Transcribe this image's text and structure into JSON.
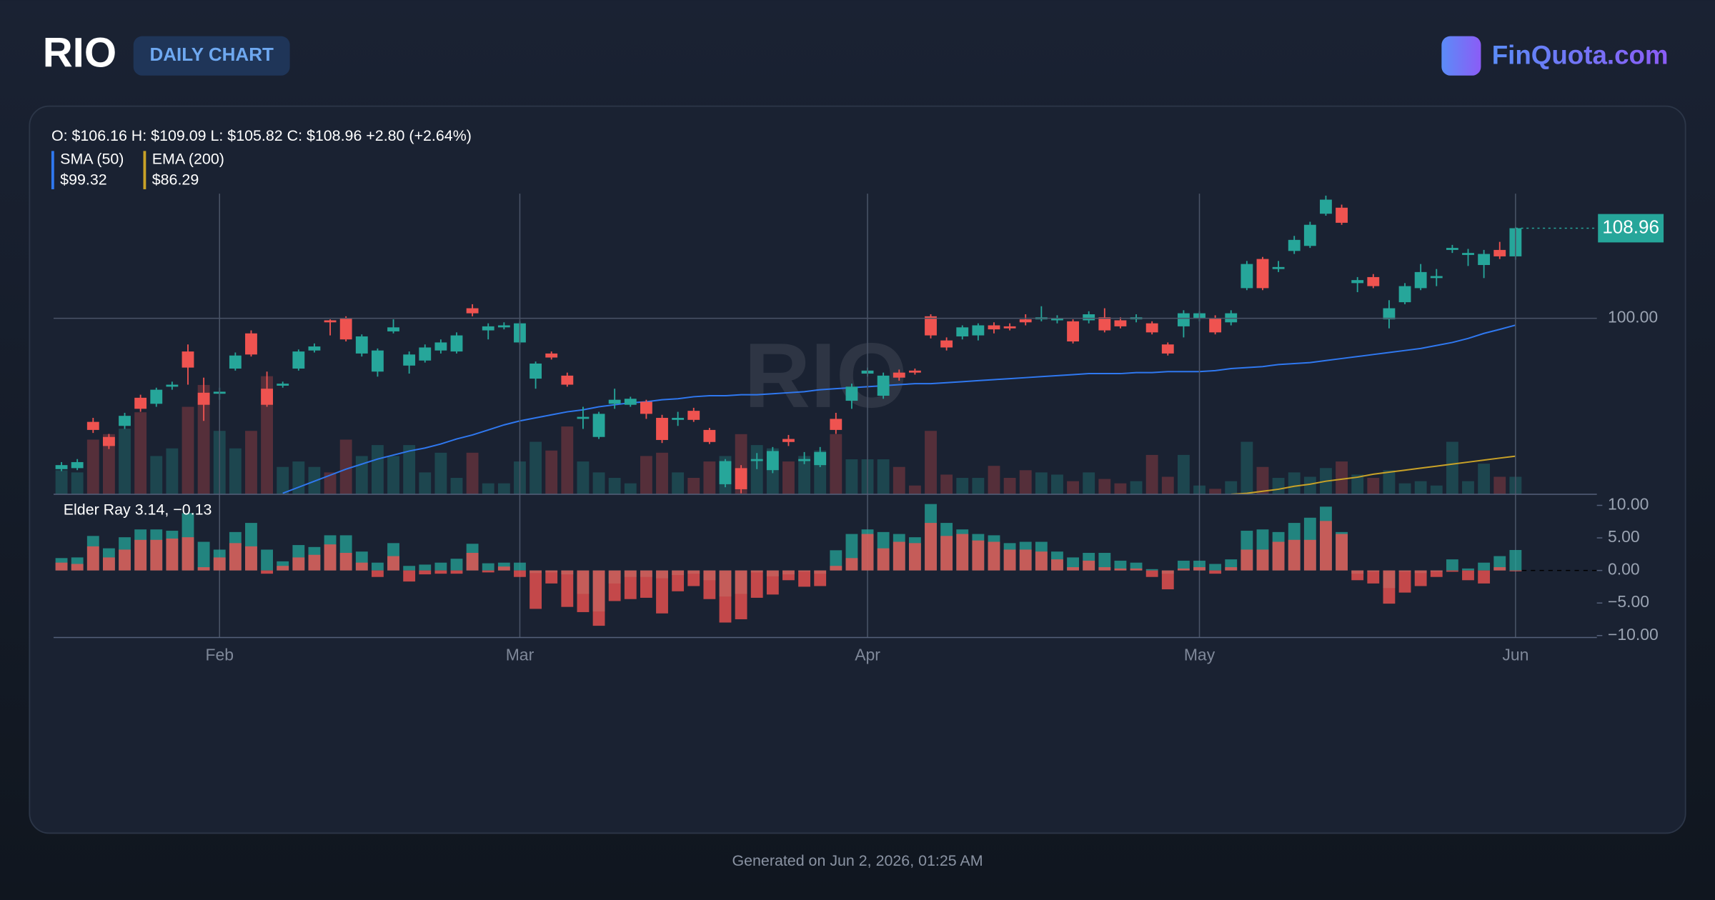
{
  "header": {
    "ticker": "RIO",
    "badge": "DAILY CHART",
    "brand": "FinQuota.com"
  },
  "chart_data": {
    "type": "candlestick",
    "categories": [
      null,
      null,
      null,
      null,
      null,
      null,
      null,
      null,
      null,
      null,
      "Feb",
      null,
      null,
      null,
      null,
      null,
      null,
      null,
      null,
      null,
      null,
      null,
      null,
      null,
      null,
      null,
      null,
      null,
      null,
      "Mar",
      null,
      null,
      null,
      null,
      null,
      null,
      null,
      null,
      null,
      null,
      null,
      null,
      null,
      null,
      null,
      null,
      null,
      null,
      null,
      null,
      null,
      "Apr",
      null,
      null,
      null,
      null,
      null,
      null,
      null,
      null,
      null,
      null,
      null,
      null,
      null,
      null,
      null,
      null,
      null,
      null,
      null,
      null,
      "May",
      null,
      null,
      null,
      null,
      null,
      null,
      null,
      null,
      null,
      null,
      null,
      null,
      null,
      null,
      null,
      null,
      null,
      null,
      null,
      "Jun"
    ],
    "open": [
      85.0,
      85.1,
      89.7,
      88.2,
      89.3,
      92.1,
      91.5,
      93.2,
      96.7,
      92.6,
      92.5,
      95.0,
      98.5,
      93.0,
      93.3,
      95.0,
      96.8,
      99.8,
      100.0,
      96.5,
      94.7,
      98.7,
      95.3,
      95.8,
      96.8,
      96.7,
      101.0,
      98.8,
      99.1,
      97.6,
      94.0,
      96.5,
      94.3,
      90.0,
      88.2,
      91.5,
      91.4,
      91.7,
      90.1,
      89.9,
      90.8,
      88.9,
      83.5,
      85.1,
      85.8,
      84.9,
      88.0,
      85.8,
      85.4,
      90.0,
      91.8,
      94.5,
      92.3,
      94.6,
      94.8,
      100.2,
      97.8,
      98.2,
      98.3,
      99.3,
      99.2,
      99.9,
      99.9,
      99.8,
      99.7,
      99.8,
      100.1,
      99.8,
      99.9,
      99.5,
      97.4,
      99.2,
      100.0,
      100.0,
      99.6,
      103.0,
      105.9,
      104.9,
      106.7,
      107.2,
      110.4,
      111.0,
      103.5,
      104.1,
      99.9,
      101.6,
      103.0,
      104.0,
      106.8,
      106.3,
      105.3,
      106.8,
      106.16
    ],
    "high": [
      85.7,
      86.0,
      90.1,
      88.5,
      90.6,
      92.4,
      93.1,
      93.7,
      97.4,
      94.1,
      93.1,
      96.6,
      98.8,
      94.7,
      93.7,
      96.9,
      97.5,
      99.9,
      100.2,
      98.4,
      97.0,
      99.9,
      96.7,
      97.4,
      97.9,
      98.6,
      101.4,
      99.5,
      99.6,
      99.7,
      95.7,
      96.7,
      94.6,
      91.2,
      90.7,
      93.0,
      92.2,
      91.9,
      90.4,
      90.7,
      91.1,
      89.1,
      86.0,
      85.4,
      86.6,
      87.2,
      88.4,
      86.7,
      87.2,
      90.6,
      93.5,
      95.1,
      94.6,
      94.9,
      95.0,
      100.4,
      98.1,
      99.3,
      99.5,
      99.6,
      99.5,
      100.4,
      101.2,
      100.3,
      99.9,
      100.7,
      101.0,
      100.1,
      100.4,
      99.7,
      97.6,
      100.8,
      100.7,
      100.3,
      100.8,
      105.7,
      106.1,
      105.7,
      108.2,
      109.6,
      112.2,
      111.3,
      104.1,
      104.4,
      101.8,
      103.5,
      105.4,
      104.9,
      107.3,
      106.9,
      106.8,
      107.6,
      109.09
    ],
    "low": [
      84.8,
      84.9,
      88.6,
      87.0,
      89.0,
      90.7,
      91.2,
      92.9,
      93.4,
      89.8,
      91.9,
      94.8,
      96.2,
      91.2,
      93.1,
      94.8,
      96.6,
      98.3,
      97.7,
      96.2,
      94.2,
      98.5,
      94.5,
      95.6,
      96.5,
      96.5,
      100.2,
      97.9,
      98.9,
      97.4,
      93.0,
      95.9,
      93.2,
      89.0,
      88.0,
      91.0,
      91.2,
      90.0,
      87.6,
      89.3,
      89.7,
      87.5,
      83.2,
      82.6,
      85.0,
      84.6,
      87.3,
      85.5,
      85.2,
      88.5,
      91.0,
      94.2,
      92.0,
      93.8,
      94.4,
      98.0,
      96.8,
      97.9,
      97.8,
      98.5,
      98.8,
      99.3,
      99.7,
      99.5,
      97.5,
      99.5,
      98.6,
      99.0,
      99.6,
      98.4,
      96.3,
      98.1,
      99.7,
      98.4,
      99.3,
      102.8,
      102.8,
      104.6,
      106.4,
      107.0,
      110.2,
      109.3,
      102.6,
      103.0,
      99.0,
      101.4,
      102.8,
      103.2,
      106.5,
      105.2,
      104.0,
      105.9,
      105.82
    ],
    "close": [
      85.4,
      85.7,
      88.9,
      87.3,
      90.3,
      91.0,
      92.9,
      93.4,
      95.1,
      91.4,
      92.7,
      96.3,
      96.4,
      91.4,
      93.5,
      96.7,
      97.2,
      99.6,
      97.9,
      98.2,
      96.8,
      99.1,
      96.4,
      97.1,
      97.6,
      98.3,
      100.5,
      99.2,
      99.3,
      99.5,
      95.5,
      96.1,
      93.4,
      90.2,
      90.5,
      91.9,
      92.0,
      90.5,
      87.9,
      90.1,
      89.9,
      87.7,
      85.8,
      83.0,
      86.0,
      86.8,
      87.7,
      86.0,
      86.7,
      88.9,
      93.2,
      94.8,
      94.3,
      94.1,
      94.6,
      98.3,
      97.1,
      99.1,
      99.3,
      98.9,
      99.0,
      99.6,
      100.1,
      100.0,
      97.7,
      100.4,
      98.8,
      99.2,
      100.1,
      98.6,
      96.5,
      100.5,
      100.5,
      98.6,
      100.5,
      105.4,
      103.0,
      105.1,
      107.8,
      109.3,
      111.8,
      109.5,
      103.8,
      103.2,
      101.0,
      103.2,
      104.6,
      104.2,
      107.0,
      106.5,
      106.4,
      106.16,
      108.96
    ],
    "up_color": "#26a69a",
    "down_color": "#ef5350",
    "ohlc_label": "O: $106.16 H: $109.09 L: $105.82 C: $108.96 +2.80 (+2.64%)",
    "last_price_label": "108.96",
    "watermark": "RIO",
    "ylim": [
      82.5,
      112.4
    ],
    "yticks": [
      {
        "value": 100,
        "label": "100.00"
      }
    ],
    "grid": true,
    "series": [
      {
        "name": "SMA (50)",
        "color": "#2f78f0",
        "last_label": "$99.32",
        "values": [
          null,
          null,
          null,
          null,
          null,
          null,
          null,
          null,
          null,
          null,
          null,
          null,
          null,
          null,
          82.6,
          83.2,
          83.8,
          84.4,
          85.0,
          85.5,
          86.0,
          86.4,
          86.8,
          87.1,
          87.5,
          88.0,
          88.4,
          88.9,
          89.4,
          89.8,
          90.1,
          90.4,
          90.7,
          90.9,
          91.2,
          91.4,
          91.6,
          91.7,
          91.9,
          92.0,
          92.2,
          92.3,
          92.3,
          92.4,
          92.4,
          92.5,
          92.6,
          92.7,
          92.9,
          93.0,
          93.1,
          93.2,
          93.3,
          93.4,
          93.5,
          93.5,
          93.6,
          93.7,
          93.8,
          93.9,
          94.0,
          94.1,
          94.2,
          94.3,
          94.4,
          94.5,
          94.5,
          94.5,
          94.6,
          94.6,
          94.7,
          94.7,
          94.7,
          94.8,
          95.0,
          95.1,
          95.2,
          95.4,
          95.5,
          95.6,
          95.8,
          96.0,
          96.2,
          96.4,
          96.6,
          96.8,
          97.0,
          97.3,
          97.6,
          98.0,
          98.5,
          98.9,
          99.32
        ]
      },
      {
        "name": "EMA (200)",
        "color": "#c9a227",
        "last_label": "$86.29",
        "values": [
          null,
          null,
          null,
          null,
          null,
          null,
          null,
          null,
          null,
          null,
          null,
          null,
          null,
          null,
          null,
          null,
          null,
          null,
          null,
          null,
          null,
          null,
          null,
          null,
          null,
          null,
          null,
          null,
          null,
          null,
          null,
          null,
          null,
          null,
          null,
          null,
          null,
          null,
          null,
          null,
          null,
          null,
          null,
          null,
          null,
          null,
          null,
          null,
          null,
          null,
          null,
          null,
          null,
          null,
          null,
          null,
          null,
          null,
          null,
          null,
          null,
          null,
          null,
          null,
          null,
          null,
          null,
          null,
          null,
          null,
          null,
          null,
          null,
          null,
          82.5,
          82.6,
          82.8,
          83.0,
          83.3,
          83.5,
          83.8,
          84.0,
          84.2,
          84.5,
          84.7,
          84.9,
          85.1,
          85.3,
          85.5,
          85.7,
          85.9,
          86.1,
          86.29
        ]
      }
    ],
    "volume": {
      "ylim": [
        0,
        27.5
      ],
      "values": [
        2.2,
        2.0,
        5.0,
        5.5,
        6.0,
        7.5,
        3.5,
        4.2,
        8.0,
        10.0,
        5.8,
        4.2,
        5.8,
        10.8,
        2.5,
        3.0,
        2.5,
        2.0,
        5.0,
        3.5,
        4.5,
        3.5,
        4.5,
        2.0,
        3.8,
        1.5,
        3.8,
        1.0,
        1.0,
        3.0,
        4.8,
        4.0,
        6.2,
        3.0,
        2.0,
        1.5,
        1.0,
        3.5,
        3.8,
        2.0,
        1.5,
        3.0,
        3.5,
        5.5,
        4.5,
        4.2,
        3.0,
        3.5,
        4.0,
        5.5,
        3.2,
        3.2,
        3.2,
        2.5,
        0.8,
        5.8,
        1.8,
        1.5,
        1.5,
        2.6,
        1.5,
        2.2,
        2.0,
        1.8,
        1.2,
        2.0,
        1.4,
        1.0,
        1.2,
        3.6,
        1.6,
        3.6,
        0.8,
        0.5,
        1.2,
        4.8,
        2.5,
        1.5,
        2.0,
        1.6,
        2.4,
        3.0,
        1.8,
        1.5,
        2.2,
        1.0,
        1.2,
        0.8,
        4.8,
        1.2,
        2.8,
        1.6,
        1.6
      ]
    },
    "elder_ray": {
      "label": "Elder Ray 3.14, −0.13",
      "ylim": [
        -10.3,
        11.7
      ],
      "yticks": [
        {
          "value": 10,
          "label": "10.00"
        },
        {
          "value": 5,
          "label": "5.00"
        },
        {
          "value": 0,
          "label": "0.00"
        },
        {
          "value": -5,
          "label": "−5.00"
        },
        {
          "value": -10,
          "label": "−10.00"
        }
      ],
      "bull": [
        1.9,
        2.0,
        5.3,
        3.4,
        5.1,
        6.3,
        6.3,
        6.1,
        8.8,
        4.4,
        3.2,
        5.9,
        7.3,
        3.2,
        1.4,
        3.9,
        3.6,
        5.4,
        5.4,
        2.9,
        1.2,
        4.2,
        0.7,
        0.9,
        1.2,
        1.8,
        4.1,
        1.1,
        1.2,
        1.2,
        -0.4,
        -0.3,
        -0.6,
        -3.6,
        -6.3,
        -2.0,
        -1.0,
        -1.0,
        -1.2,
        -0.7,
        -0.5,
        -1.5,
        -4.0,
        -3.6,
        -0.3,
        -0.9,
        -0.6,
        -0.2,
        -0.5,
        3.1,
        5.6,
        6.3,
        5.9,
        5.6,
        5.1,
        10.2,
        7.3,
        6.3,
        5.6,
        5.4,
        4.2,
        4.4,
        4.4,
        2.9,
        2.0,
        2.7,
        2.7,
        1.5,
        1.2,
        0.2,
        -0.5,
        1.5,
        1.5,
        1.0,
        1.7,
        6.1,
        6.3,
        5.9,
        7.3,
        8.1,
        9.8,
        5.9,
        -0.5,
        -0.2,
        -2.7,
        -0.2,
        -0.4,
        -0.2,
        1.7,
        0.3,
        1.2,
        2.2,
        3.14
      ],
      "bear": [
        1.2,
        1.0,
        3.7,
        2.0,
        3.2,
        4.7,
        4.7,
        4.9,
        5.1,
        0.5,
        2.0,
        4.2,
        3.7,
        -0.5,
        0.7,
        2.0,
        2.4,
        4.0,
        2.7,
        1.2,
        -1.0,
        2.2,
        -1.7,
        -0.6,
        -0.5,
        -0.5,
        2.7,
        -0.3,
        0.6,
        -1.0,
        -5.9,
        -2.0,
        -5.6,
        -6.4,
        -8.5,
        -4.7,
        -4.4,
        -4.2,
        -6.6,
        -3.2,
        -2.4,
        -4.4,
        -8.0,
        -7.5,
        -4.2,
        -3.7,
        -1.5,
        -2.5,
        -2.4,
        0.7,
        1.9,
        5.6,
        3.4,
        4.4,
        4.2,
        7.3,
        5.3,
        5.6,
        4.6,
        4.4,
        3.2,
        3.2,
        2.9,
        1.7,
        0.5,
        1.5,
        0.5,
        0.3,
        0.3,
        -1.0,
        -2.9,
        0.3,
        0.5,
        -0.5,
        0.5,
        3.2,
        3.2,
        4.4,
        4.7,
        4.7,
        7.6,
        5.6,
        -1.5,
        -2.0,
        -5.1,
        -3.4,
        -2.4,
        -1.0,
        -0.2,
        -1.5,
        -2.0,
        0.5,
        -0.13
      ]
    }
  },
  "footer": "Generated on Jun 2, 2026, 01:25 AM"
}
